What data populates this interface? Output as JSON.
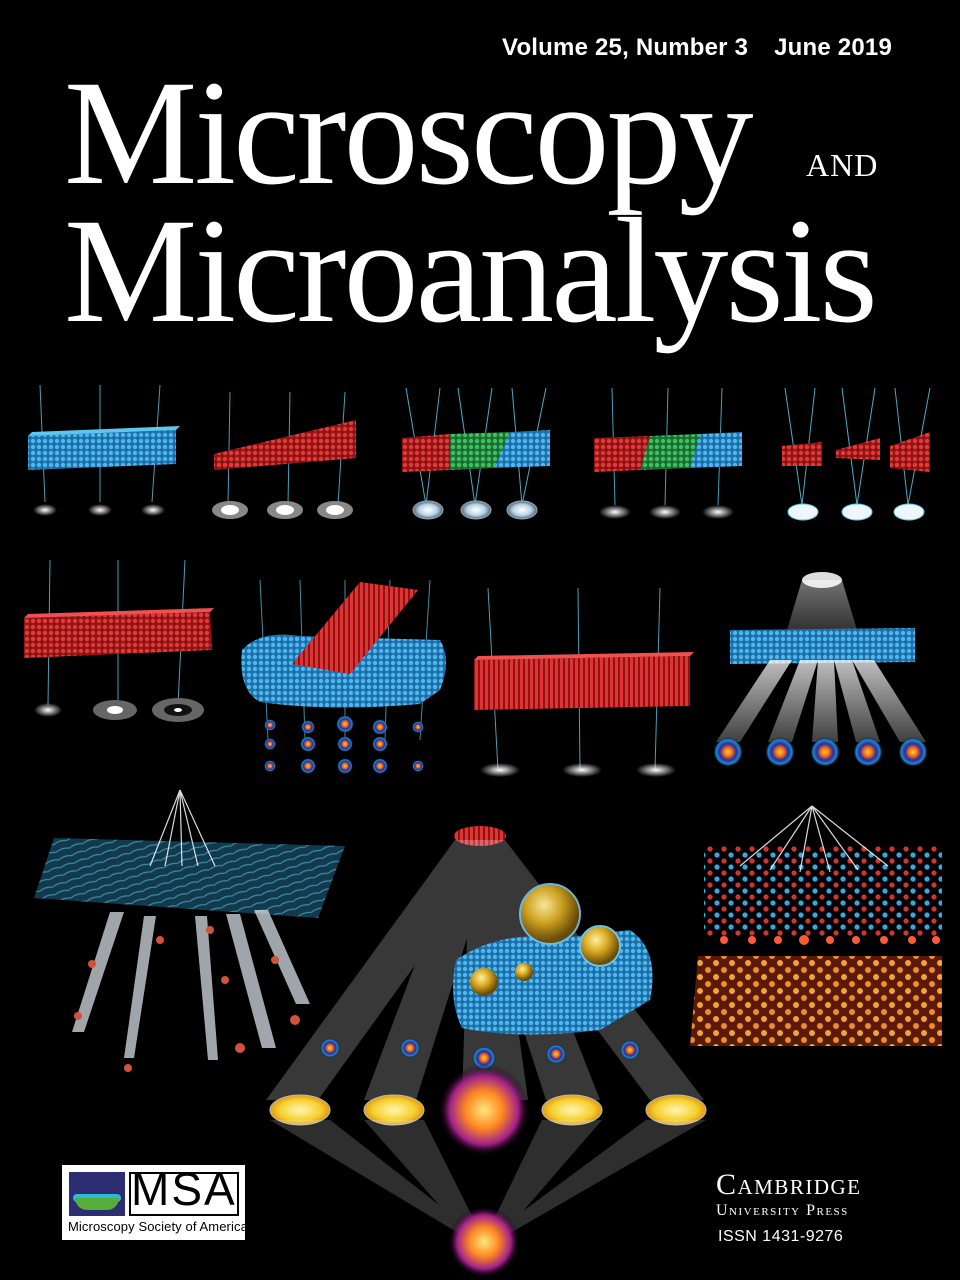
{
  "issue": {
    "volume": "Volume 25, Number 3",
    "date": "June 2019"
  },
  "journal": {
    "title_line1": "Microscopy",
    "title_and": "and",
    "title_line2": "Microanalysis"
  },
  "society": {
    "acronym": "MSA",
    "name": "Microscopy Society of America"
  },
  "publisher": {
    "name": "Cambridge",
    "press": "University Press",
    "issn": "ISSN 1431-9276"
  },
  "colors": {
    "background": "#000000",
    "atoms_blue": "#2a9bd6",
    "atoms_red": "#d42a2a",
    "atoms_green": "#2fa64a",
    "beam": "#c9d8e6",
    "msa_navy": "#2d2d74",
    "msa_green": "#55ad3c",
    "msa_cyan": "#2fb9d8"
  },
  "illustration": {
    "subject": "multislice electron scattering simulations",
    "row1_count": 5,
    "row2_count": 4,
    "row3_count": 3
  }
}
